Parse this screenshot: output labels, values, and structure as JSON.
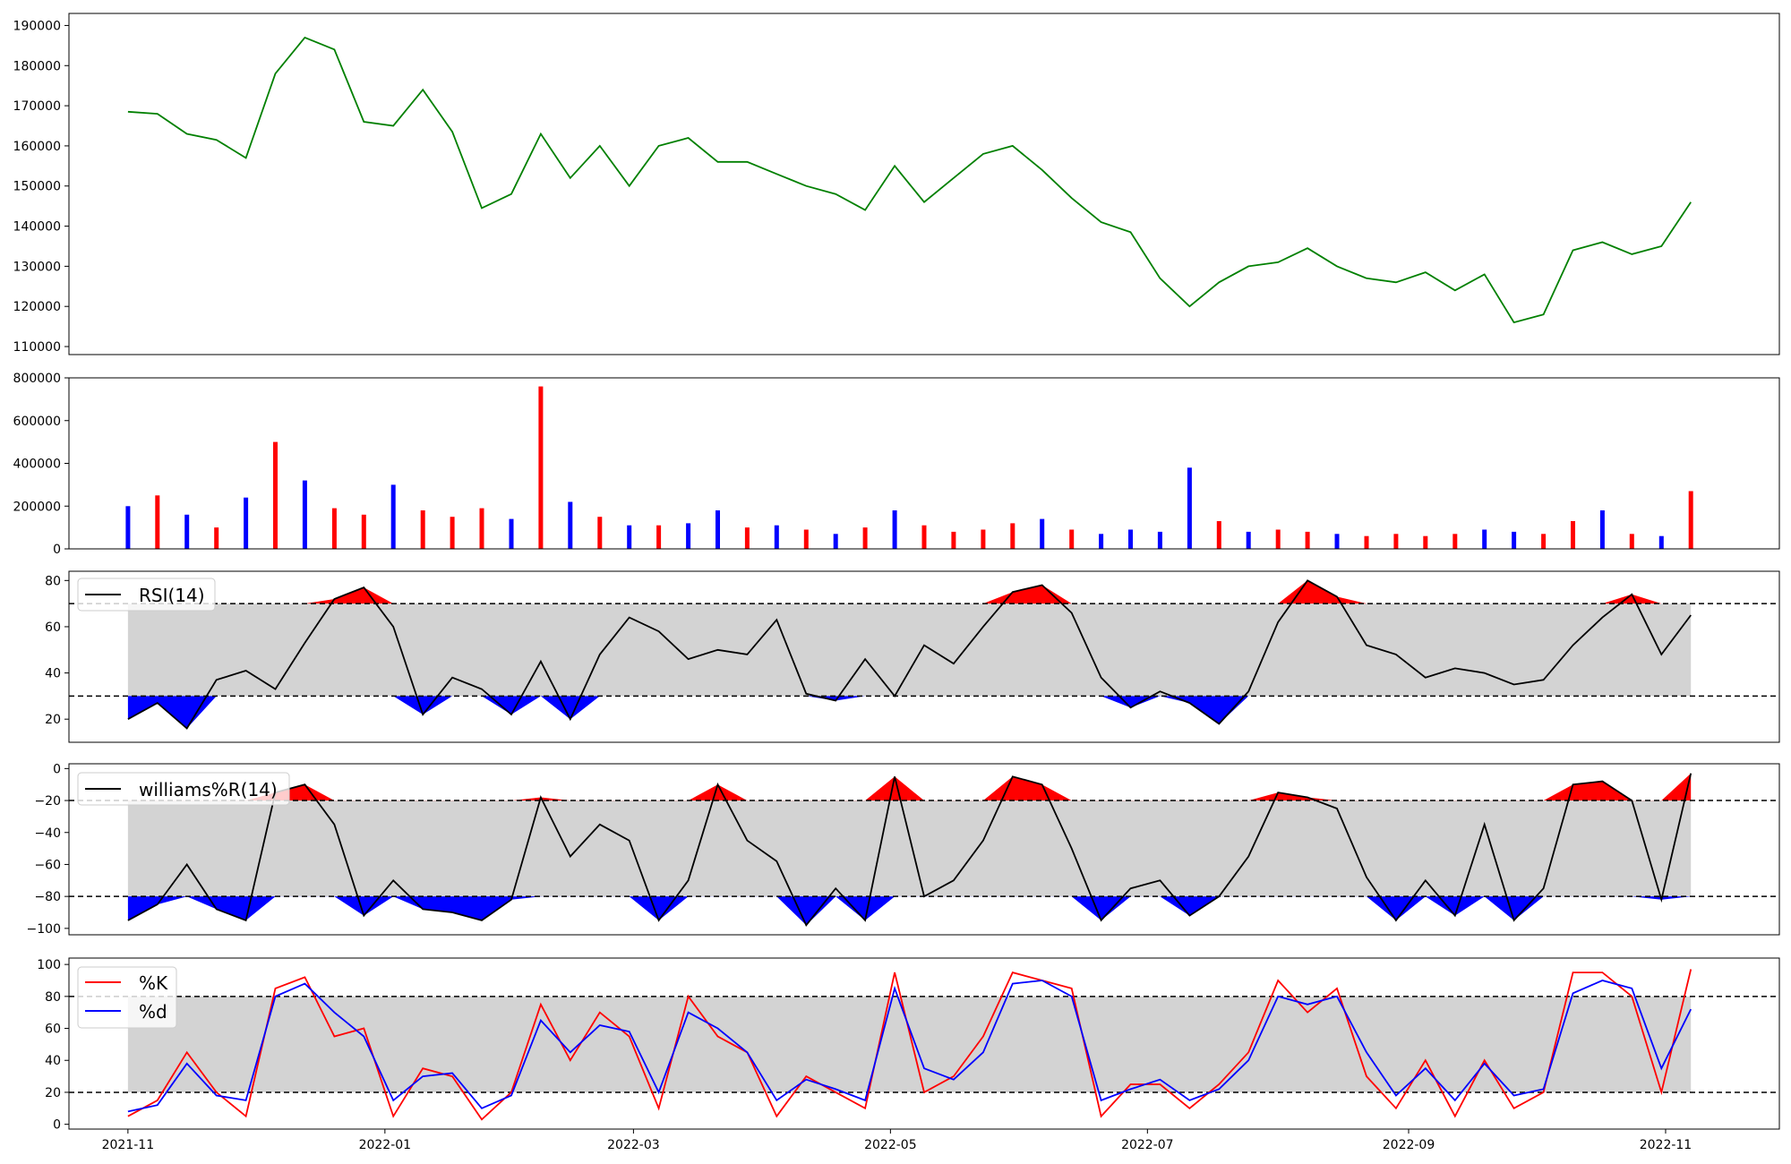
{
  "chart_data": [
    {
      "type": "line",
      "title": "",
      "ylim": [
        108000,
        193000
      ],
      "yticks": [
        "110000",
        "120000",
        "130000",
        "140000",
        "150000",
        "160000",
        "170000",
        "180000",
        "190000"
      ],
      "series": [
        {
          "color": "#008000",
          "x": [
            "2021-11-01",
            "2021-11-08",
            "2021-11-15",
            "2021-11-22",
            "2021-11-29",
            "2021-12-06",
            "2021-12-13",
            "2021-12-20",
            "2021-12-27",
            "2022-01-03",
            "2022-01-10",
            "2022-01-17",
            "2022-01-24",
            "2022-01-31",
            "2022-02-07",
            "2022-02-14",
            "2022-02-21",
            "2022-02-28",
            "2022-03-07",
            "2022-03-14",
            "2022-03-21",
            "2022-03-28",
            "2022-04-04",
            "2022-04-11",
            "2022-04-18",
            "2022-04-25",
            "2022-05-02",
            "2022-05-09",
            "2022-05-16",
            "2022-05-23",
            "2022-05-30",
            "2022-06-06",
            "2022-06-13",
            "2022-06-20",
            "2022-06-27",
            "2022-07-04",
            "2022-07-11",
            "2022-07-18",
            "2022-07-25",
            "2022-08-01",
            "2022-08-08",
            "2022-08-15",
            "2022-08-22",
            "2022-08-29",
            "2022-09-05",
            "2022-09-12",
            "2022-09-19",
            "2022-09-26",
            "2022-10-03",
            "2022-10-10",
            "2022-10-17",
            "2022-10-24",
            "2022-10-31",
            "2022-11-07"
          ],
          "values": [
            168500,
            168000,
            163000,
            161500,
            157000,
            178000,
            187000,
            184000,
            166000,
            165000,
            174000,
            163500,
            144500,
            148000,
            163000,
            152000,
            160000,
            150000,
            160000,
            162000,
            156000,
            156000,
            153000,
            150000,
            148000,
            144000,
            155000,
            146000,
            152000,
            158000,
            160000,
            154000,
            147000,
            141000,
            138500,
            127000,
            120000,
            126000,
            130000,
            131000,
            134500,
            130000,
            127000,
            126000,
            128500,
            124000,
            128000,
            116000,
            118000,
            134000,
            136000,
            133000,
            135000,
            146000
          ]
        }
      ]
    },
    {
      "type": "bar",
      "title": "",
      "ylim": [
        0,
        800000
      ],
      "yticks": [
        "0",
        "200000",
        "400000",
        "600000",
        "800000"
      ],
      "colors": {
        "up": "#ff0000",
        "down": "#0000ff",
        "flat": "#000000"
      },
      "x": [
        "2021-11-01",
        "2021-11-08",
        "2021-11-15",
        "2021-11-22",
        "2021-11-29",
        "2021-12-06",
        "2021-12-13",
        "2021-12-20",
        "2021-12-27",
        "2022-01-03",
        "2022-01-10",
        "2022-01-17",
        "2022-01-24",
        "2022-01-31",
        "2022-02-07",
        "2022-02-14",
        "2022-02-21",
        "2022-02-28",
        "2022-03-07",
        "2022-03-14",
        "2022-03-21",
        "2022-03-28",
        "2022-04-04",
        "2022-04-11",
        "2022-04-18",
        "2022-04-25",
        "2022-05-02",
        "2022-05-09",
        "2022-05-16",
        "2022-05-23",
        "2022-05-30",
        "2022-06-06",
        "2022-06-13",
        "2022-06-20",
        "2022-06-27",
        "2022-07-04",
        "2022-07-11",
        "2022-07-18",
        "2022-07-25",
        "2022-08-01",
        "2022-08-08",
        "2022-08-15",
        "2022-08-22",
        "2022-08-29",
        "2022-09-05",
        "2022-09-12",
        "2022-09-19",
        "2022-09-26",
        "2022-10-03",
        "2022-10-10",
        "2022-10-17",
        "2022-10-24",
        "2022-10-31",
        "2022-11-07"
      ],
      "values": [
        200000,
        250000,
        160000,
        100000,
        240000,
        500000,
        320000,
        190000,
        160000,
        300000,
        180000,
        150000,
        190000,
        140000,
        760000,
        220000,
        150000,
        110000,
        110000,
        120000,
        180000,
        100000,
        110000,
        90000,
        70000,
        100000,
        180000,
        110000,
        80000,
        90000,
        120000,
        140000,
        90000,
        70000,
        90000,
        80000,
        380000,
        130000,
        80000,
        90000,
        80000,
        70000,
        60000,
        70000,
        60000,
        70000,
        90000,
        80000,
        70000,
        130000,
        180000,
        70000,
        60000,
        270000
      ],
      "directions": [
        "down",
        "up",
        "down",
        "up",
        "down",
        "up",
        "down",
        "up",
        "up",
        "down",
        "up",
        "up",
        "up",
        "down",
        "up",
        "down",
        "up",
        "down",
        "up",
        "down",
        "down",
        "up",
        "down",
        "up",
        "down",
        "up",
        "down",
        "up",
        "up",
        "up",
        "up",
        "down",
        "up",
        "down",
        "down",
        "down",
        "down",
        "up",
        "down",
        "up",
        "up",
        "down",
        "up",
        "up",
        "up",
        "up",
        "down",
        "down",
        "up",
        "up",
        "down",
        "up",
        "down",
        "up"
      ]
    },
    {
      "type": "area",
      "title": "",
      "ylim": [
        10,
        84
      ],
      "yticks": [
        "20",
        "40",
        "60",
        "80"
      ],
      "thresholds": [
        30,
        70
      ],
      "legend": [
        "RSI(14)"
      ],
      "legend_position": "upper-left",
      "colors": {
        "line": "#000000",
        "band": "#d3d3d3",
        "over": "#ff0000",
        "under": "#0000ff"
      },
      "x": [
        "2021-11-01",
        "2021-11-08",
        "2021-11-15",
        "2021-11-22",
        "2021-11-29",
        "2021-12-06",
        "2021-12-13",
        "2021-12-20",
        "2021-12-27",
        "2022-01-03",
        "2022-01-10",
        "2022-01-17",
        "2022-01-24",
        "2022-01-31",
        "2022-02-07",
        "2022-02-14",
        "2022-02-21",
        "2022-02-28",
        "2022-03-07",
        "2022-03-14",
        "2022-03-21",
        "2022-03-28",
        "2022-04-04",
        "2022-04-11",
        "2022-04-18",
        "2022-04-25",
        "2022-05-02",
        "2022-05-09",
        "2022-05-16",
        "2022-05-23",
        "2022-05-30",
        "2022-06-06",
        "2022-06-13",
        "2022-06-20",
        "2022-06-27",
        "2022-07-04",
        "2022-07-11",
        "2022-07-18",
        "2022-07-25",
        "2022-08-01",
        "2022-08-08",
        "2022-08-15",
        "2022-08-22",
        "2022-08-29",
        "2022-09-05",
        "2022-09-12",
        "2022-09-19",
        "2022-09-26",
        "2022-10-03",
        "2022-10-10",
        "2022-10-17",
        "2022-10-24",
        "2022-10-31",
        "2022-11-07"
      ],
      "series": [
        {
          "name": "RSI(14)",
          "values": [
            20,
            27,
            16,
            37,
            41,
            33,
            53,
            72,
            77,
            60,
            22,
            38,
            33,
            22,
            45,
            20,
            48,
            64,
            58,
            46,
            50,
            48,
            63,
            31,
            28,
            46,
            30,
            52,
            44,
            60,
            75,
            78,
            66,
            38,
            25,
            32,
            27,
            18,
            32,
            62,
            80,
            73,
            52,
            48,
            38,
            42,
            40,
            35,
            37,
            52,
            64,
            74,
            48,
            65
          ]
        }
      ]
    },
    {
      "type": "area",
      "title": "",
      "ylim": [
        -104,
        3
      ],
      "yticks": [
        "0",
        "−20",
        "−40",
        "−60",
        "−80",
        "−100"
      ],
      "thresholds": [
        -80,
        -20
      ],
      "legend": [
        "williams%R(14)"
      ],
      "legend_position": "upper-left",
      "colors": {
        "line": "#000000",
        "band": "#d3d3d3",
        "over": "#ff0000",
        "under": "#0000ff"
      },
      "x": [
        "2021-11-01",
        "2021-11-08",
        "2021-11-15",
        "2021-11-22",
        "2021-11-29",
        "2021-12-06",
        "2021-12-13",
        "2021-12-20",
        "2021-12-27",
        "2022-01-03",
        "2022-01-10",
        "2022-01-17",
        "2022-01-24",
        "2022-01-31",
        "2022-02-07",
        "2022-02-14",
        "2022-02-21",
        "2022-02-28",
        "2022-03-07",
        "2022-03-14",
        "2022-03-21",
        "2022-03-28",
        "2022-04-04",
        "2022-04-11",
        "2022-04-18",
        "2022-04-25",
        "2022-05-02",
        "2022-05-09",
        "2022-05-16",
        "2022-05-23",
        "2022-05-30",
        "2022-06-06",
        "2022-06-13",
        "2022-06-20",
        "2022-06-27",
        "2022-07-04",
        "2022-07-11",
        "2022-07-18",
        "2022-07-25",
        "2022-08-01",
        "2022-08-08",
        "2022-08-15",
        "2022-08-22",
        "2022-08-29",
        "2022-09-05",
        "2022-09-12",
        "2022-09-19",
        "2022-09-26",
        "2022-10-03",
        "2022-10-10",
        "2022-10-17",
        "2022-10-24",
        "2022-10-31",
        "2022-11-07"
      ],
      "series": [
        {
          "name": "williams%R(14)",
          "values": [
            -95,
            -85,
            -60,
            -88,
            -95,
            -15,
            -10,
            -35,
            -92,
            -70,
            -88,
            -90,
            -95,
            -82,
            -18,
            -55,
            -35,
            -45,
            -95,
            -70,
            -10,
            -45,
            -58,
            -98,
            -75,
            -95,
            -5,
            -80,
            -70,
            -45,
            -5,
            -10,
            -50,
            -95,
            -75,
            -70,
            -92,
            -80,
            -55,
            -15,
            -18,
            -25,
            -68,
            -95,
            -70,
            -92,
            -35,
            -95,
            -75,
            -10,
            -8,
            -20,
            -82,
            -3
          ]
        }
      ]
    },
    {
      "type": "line",
      "title": "",
      "ylim": [
        -3,
        104
      ],
      "yticks": [
        "0",
        "20",
        "40",
        "60",
        "80",
        "100"
      ],
      "thresholds": [
        20,
        80
      ],
      "legend": [
        "%K",
        "%d"
      ],
      "legend_position": "upper-left",
      "colors": {
        "band": "#d3d3d3"
      },
      "x": [
        "2021-11-01",
        "2021-11-08",
        "2021-11-15",
        "2021-11-22",
        "2021-11-29",
        "2021-12-06",
        "2021-12-13",
        "2021-12-20",
        "2021-12-27",
        "2022-01-03",
        "2022-01-10",
        "2022-01-17",
        "2022-01-24",
        "2022-01-31",
        "2022-02-07",
        "2022-02-14",
        "2022-02-21",
        "2022-02-28",
        "2022-03-07",
        "2022-03-14",
        "2022-03-21",
        "2022-03-28",
        "2022-04-04",
        "2022-04-11",
        "2022-04-18",
        "2022-04-25",
        "2022-05-02",
        "2022-05-09",
        "2022-05-16",
        "2022-05-23",
        "2022-05-30",
        "2022-06-06",
        "2022-06-13",
        "2022-06-20",
        "2022-06-27",
        "2022-07-04",
        "2022-07-11",
        "2022-07-18",
        "2022-07-25",
        "2022-08-01",
        "2022-08-08",
        "2022-08-15",
        "2022-08-22",
        "2022-08-29",
        "2022-09-05",
        "2022-09-12",
        "2022-09-19",
        "2022-09-26",
        "2022-10-03",
        "2022-10-10",
        "2022-10-17",
        "2022-10-24",
        "2022-10-31",
        "2022-11-07"
      ],
      "series": [
        {
          "name": "%K",
          "color": "#ff0000",
          "values": [
            5,
            15,
            45,
            20,
            5,
            85,
            92,
            55,
            60,
            5,
            35,
            30,
            3,
            20,
            75,
            40,
            70,
            55,
            10,
            80,
            55,
            45,
            5,
            30,
            20,
            10,
            95,
            20,
            30,
            55,
            95,
            90,
            85,
            5,
            25,
            25,
            10,
            25,
            45,
            90,
            70,
            85,
            30,
            10,
            40,
            5,
            40,
            10,
            20,
            95,
            95,
            80,
            20,
            97
          ]
        },
        {
          "name": "%d",
          "color": "#0000ff",
          "values": [
            8,
            12,
            38,
            18,
            15,
            80,
            88,
            70,
            55,
            15,
            30,
            32,
            10,
            18,
            65,
            45,
            62,
            58,
            20,
            70,
            60,
            45,
            15,
            28,
            22,
            15,
            85,
            35,
            28,
            45,
            88,
            90,
            80,
            15,
            22,
            28,
            15,
            22,
            40,
            80,
            75,
            80,
            45,
            18,
            35,
            15,
            38,
            18,
            22,
            82,
            90,
            85,
            35,
            72
          ]
        }
      ]
    }
  ],
  "x_ticks": [
    "2021-11",
    "2022-01",
    "2022-03",
    "2022-05",
    "2022-07",
    "2022-09",
    "2022-11"
  ]
}
